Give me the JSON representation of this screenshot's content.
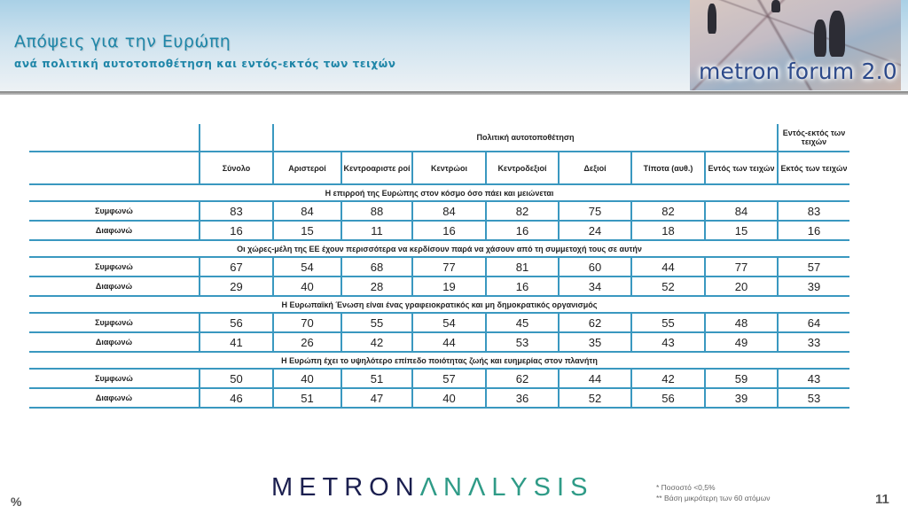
{
  "header": {
    "title": "Απόψεις για την Ευρώπη",
    "subtitle": "ανά πολιτική αυτοτοποθέτηση και εντός-εκτός των τειχών",
    "logo_text": "metron forum 2.0"
  },
  "table": {
    "group_headers": {
      "political": "Πολιτική αυτοτοποθέτηση",
      "walls": "Εντός-εκτός των τειχών"
    },
    "columns": [
      "Σύνολο",
      "Αριστεροί",
      "Κεντροαριστε ροί",
      "Κεντρώοι",
      "Κεντροδεξιοί",
      "Δεξιοί",
      "Τίποτα (αυθ.)",
      "Εντός των τειχών",
      "Εκτός των τειχών"
    ],
    "sections": [
      {
        "question": "Η επιρροή της Ευρώπης στον κόσμο όσο πάει και μειώνεται",
        "rows": [
          {
            "label": "Συμφωνώ",
            "values": [
              83,
              84,
              88,
              84,
              82,
              75,
              82,
              84,
              83
            ]
          },
          {
            "label": "Διαφωνώ",
            "values": [
              16,
              15,
              11,
              16,
              16,
              24,
              18,
              15,
              16
            ]
          }
        ]
      },
      {
        "question": "Οι χώρες-μέλη της ΕΕ έχουν περισσότερα να κερδίσουν παρά να χάσουν από τη συμμετοχή τους σε αυτήν",
        "rows": [
          {
            "label": "Συμφωνώ",
            "values": [
              67,
              54,
              68,
              77,
              81,
              60,
              44,
              77,
              57
            ]
          },
          {
            "label": "Διαφωνώ",
            "values": [
              29,
              40,
              28,
              19,
              16,
              34,
              52,
              20,
              39
            ]
          }
        ]
      },
      {
        "question": "Η Ευρωπαϊκή Ένωση είναι ένας γραφειοκρατικός και μη δημοκρατικός οργανισμός",
        "rows": [
          {
            "label": "Συμφωνώ",
            "values": [
              56,
              70,
              55,
              54,
              45,
              62,
              55,
              48,
              64
            ]
          },
          {
            "label": "Διαφωνώ",
            "values": [
              41,
              26,
              42,
              44,
              53,
              35,
              43,
              49,
              33
            ]
          }
        ]
      },
      {
        "question": "Η Ευρώπη έχει το υψηλότερο επίπεδο ποιότητας ζωής και ευημερίας στον πλανήτη",
        "rows": [
          {
            "label": "Συμφωνώ",
            "values": [
              50,
              40,
              51,
              57,
              62,
              44,
              42,
              59,
              43
            ]
          },
          {
            "label": "Διαφωνώ",
            "values": [
              46,
              51,
              47,
              40,
              36,
              52,
              56,
              39,
              53
            ]
          }
        ]
      }
    ]
  },
  "footer": {
    "unit": "%",
    "brand_part1": "METRON",
    "brand_part2": "ΛNΛLYSIS",
    "note1": "*  Ποσοστό <0,5%",
    "note2": "**  Βάση μικρότερη των 60 ατόμων",
    "page_number": "11"
  },
  "colors": {
    "accent": "#1f86a8",
    "table_lines": "#3a98c0",
    "brand_dark": "#1b1f4f",
    "brand_teal": "#2f9b87"
  }
}
